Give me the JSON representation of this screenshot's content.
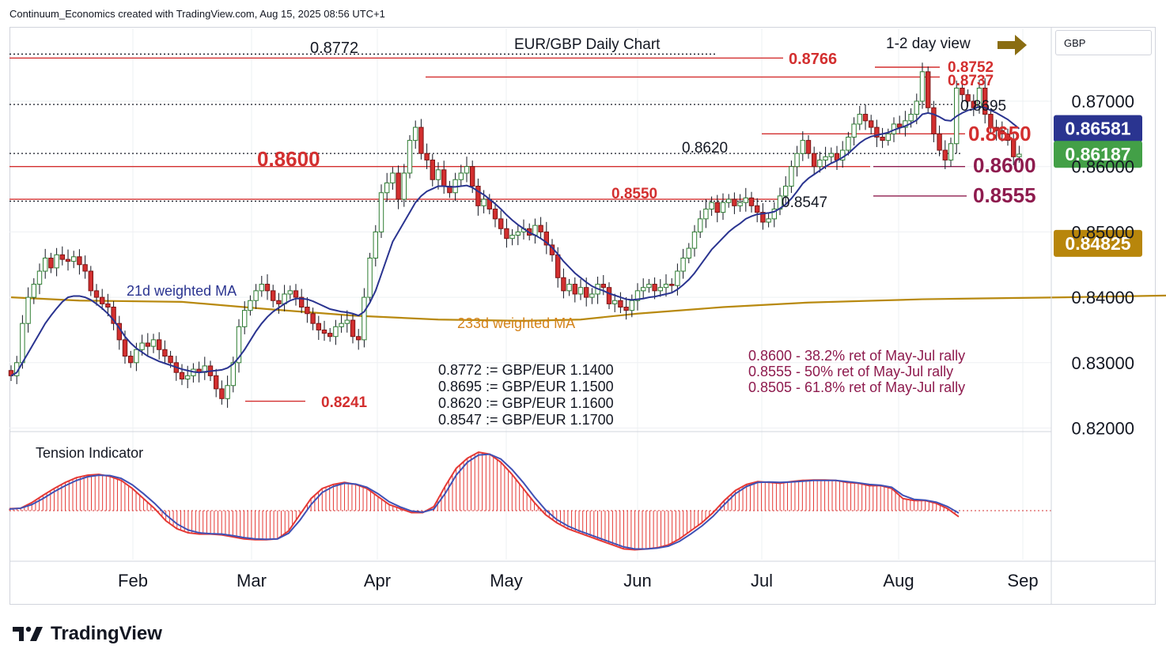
{
  "header": {
    "credit": "Continuum_Economics created with TradingView.com, Aug 15, 2025 08:56 UTC+1"
  },
  "symbol_box": "GBP",
  "logo": {
    "text": "TradingView"
  },
  "chart_data": {
    "type": "candlestick",
    "title": "EUR/GBP Daily Chart",
    "subtitle": "1-2 day view",
    "outlook_arrow": "right",
    "x_ticks": [
      "Feb",
      "Mar",
      "Apr",
      "May",
      "Jun",
      "Jul",
      "Aug",
      "Sep"
    ],
    "y_ticks": [
      "0.87000",
      "0.86000",
      "0.85000",
      "0.84000",
      "0.83000",
      "0.82000"
    ],
    "price_tags": [
      {
        "label": "0.86581",
        "value": 0.86581,
        "color": "#2a3490",
        "series": "21d weighted MA"
      },
      {
        "label": "0.86187",
        "value": 0.86187,
        "color": "#43a047",
        "series": "last close"
      },
      {
        "label": "0.84825",
        "value": 0.84825,
        "color": "#b8860b",
        "series": "233d weighted MA"
      }
    ],
    "levels": [
      {
        "label": "0.8772",
        "value": 0.8772,
        "style": "dotted",
        "color": "#131722"
      },
      {
        "label": "0.8766",
        "value": 0.8766,
        "style": "solid",
        "color": "#d32f2f"
      },
      {
        "label": "0.8752",
        "value": 0.8752,
        "style": "solid",
        "color": "#d32f2f"
      },
      {
        "label": "0.8737",
        "value": 0.8737,
        "style": "solid",
        "color": "#d32f2f"
      },
      {
        "label": "0.8695",
        "value": 0.8695,
        "style": "dotted",
        "color": "#131722"
      },
      {
        "label": "0.8650",
        "value": 0.865,
        "style": "solid",
        "color": "#d32f2f"
      },
      {
        "label": "0.8620",
        "value": 0.862,
        "style": "dotted",
        "color": "#131722"
      },
      {
        "label": "0.8600",
        "value": 0.86,
        "style": "solid",
        "color": "#d32f2f"
      },
      {
        "label": "0.8600",
        "value": 0.86,
        "style": "solid",
        "color": "#8e1b4e"
      },
      {
        "label": "0.8555",
        "value": 0.8555,
        "style": "solid",
        "color": "#8e1b4e"
      },
      {
        "label": "0.8550",
        "value": 0.855,
        "style": "solid",
        "color": "#d32f2f"
      },
      {
        "label": "0.8547",
        "value": 0.8547,
        "style": "dotted",
        "color": "#131722"
      },
      {
        "label": "0.8241",
        "value": 0.8241,
        "style": "solid",
        "color": "#d32f2f"
      }
    ],
    "series_labels": [
      {
        "name": "21d weighted MA",
        "color": "#2a3490"
      },
      {
        "name": "233d weighted MA",
        "color": "#d4831a"
      }
    ],
    "notes_conversion": [
      "0.8772 := GBP/EUR 1.1400",
      "0.8695 := GBP/EUR 1.1500",
      "0.8620 := GBP/EUR 1.1600",
      "0.8547 := GBP/EUR 1.1700"
    ],
    "notes_retracement": [
      "0.8600 - 38.2% ret of May-Jul rally",
      "0.8555 - 50% ret of May-Jul rally",
      "0.8505 - 61.8% ret of May-Jul rally"
    ],
    "indicator": {
      "name": "Tension Indicator"
    },
    "close_series": [
      0.828,
      0.83,
      0.836,
      0.84,
      0.842,
      0.844,
      0.846,
      0.8445,
      0.8465,
      0.8458,
      0.8455,
      0.8462,
      0.845,
      0.844,
      0.841,
      0.84,
      0.839,
      0.8385,
      0.836,
      0.8335,
      0.831,
      0.83,
      0.832,
      0.833,
      0.8325,
      0.8335,
      0.832,
      0.831,
      0.83,
      0.8285,
      0.8275,
      0.828,
      0.829,
      0.8285,
      0.8295,
      0.828,
      0.826,
      0.8245,
      0.8265,
      0.83,
      0.8355,
      0.838,
      0.8395,
      0.841,
      0.842,
      0.841,
      0.8395,
      0.839,
      0.8405,
      0.841,
      0.84,
      0.8385,
      0.8375,
      0.836,
      0.835,
      0.8345,
      0.834,
      0.8355,
      0.836,
      0.8365,
      0.834,
      0.8335,
      0.84,
      0.846,
      0.85,
      0.856,
      0.8575,
      0.859,
      0.855,
      0.859,
      0.864,
      0.866,
      0.862,
      0.861,
      0.858,
      0.8595,
      0.857,
      0.856,
      0.858,
      0.859,
      0.86,
      0.857,
      0.854,
      0.855,
      0.8535,
      0.852,
      0.8505,
      0.849,
      0.8495,
      0.85,
      0.8505,
      0.8495,
      0.851,
      0.85,
      0.848,
      0.8465,
      0.843,
      0.841,
      0.842,
      0.8405,
      0.8415,
      0.84,
      0.8405,
      0.842,
      0.8415,
      0.839,
      0.8395,
      0.8385,
      0.838,
      0.8395,
      0.841,
      0.8415,
      0.842,
      0.841,
      0.8415,
      0.842,
      0.8418,
      0.844,
      0.846,
      0.8475,
      0.85,
      0.852,
      0.8535,
      0.8545,
      0.853,
      0.8545,
      0.855,
      0.854,
      0.8545,
      0.8552,
      0.854,
      0.853,
      0.8515,
      0.852,
      0.8535,
      0.8555,
      0.857,
      0.86,
      0.862,
      0.864,
      0.862,
      0.86,
      0.861,
      0.8615,
      0.862,
      0.861,
      0.8625,
      0.8645,
      0.8665,
      0.868,
      0.867,
      0.866,
      0.8645,
      0.864,
      0.865,
      0.8665,
      0.866,
      0.867,
      0.868,
      0.87,
      0.8745,
      0.869,
      0.865,
      0.8625,
      0.861,
      0.8635,
      0.872,
      0.871,
      0.87,
      0.869,
      0.872,
      0.868,
      0.866,
      0.8655,
      0.865,
      0.864,
      0.8615,
      0.8619
    ],
    "wma21_series": [
      0.828,
      0.8285,
      0.83,
      0.8315,
      0.833,
      0.8345,
      0.836,
      0.8372,
      0.8383,
      0.8393,
      0.84,
      0.8402,
      0.8402,
      0.84,
      0.8396,
      0.839,
      0.8383,
      0.8375,
      0.8365,
      0.8353,
      0.834,
      0.833,
      0.8322,
      0.8316,
      0.831,
      0.8306,
      0.8302,
      0.8299,
      0.8296,
      0.8293,
      0.829,
      0.8288,
      0.8286,
      0.8285,
      0.8286,
      0.8287,
      0.8288,
      0.8289,
      0.8292,
      0.8298,
      0.8308,
      0.832,
      0.8334,
      0.8348,
      0.836,
      0.837,
      0.8378,
      0.8384,
      0.839,
      0.8395,
      0.8398,
      0.8398,
      0.8397,
      0.8394,
      0.839,
      0.8386,
      0.8382,
      0.838,
      0.8378,
      0.8377,
      0.8375,
      0.8372,
      0.8378,
      0.8392,
      0.841,
      0.8435,
      0.846,
      0.8485,
      0.85,
      0.8515,
      0.853,
      0.8545,
      0.8555,
      0.8562,
      0.8566,
      0.857,
      0.857,
      0.8569,
      0.8569,
      0.857,
      0.8571,
      0.8568,
      0.8562,
      0.8557,
      0.855,
      0.8543,
      0.8535,
      0.8526,
      0.8518,
      0.8511,
      0.8505,
      0.8499,
      0.8495,
      0.849,
      0.8484,
      0.8476,
      0.8466,
      0.8455,
      0.8446,
      0.8437,
      0.843,
      0.8423,
      0.8417,
      0.8413,
      0.841,
      0.8406,
      0.8403,
      0.84,
      0.8397,
      0.8396,
      0.8397,
      0.8398,
      0.84,
      0.8401,
      0.8403,
      0.8405,
      0.8407,
      0.8412,
      0.8419,
      0.8427,
      0.8437,
      0.8449,
      0.8461,
      0.8473,
      0.8482,
      0.8491,
      0.85,
      0.8507,
      0.8513,
      0.852,
      0.8524,
      0.8527,
      0.8528,
      0.8529,
      0.8531,
      0.8536,
      0.8542,
      0.8551,
      0.8562,
      0.8574,
      0.8582,
      0.8588,
      0.8594,
      0.86,
      0.8605,
      0.8609,
      0.8614,
      0.862,
      0.8628,
      0.8636,
      0.8642,
      0.8646,
      0.8648,
      0.865,
      0.8652,
      0.8656,
      0.8659,
      0.8662,
      0.8666,
      0.8671,
      0.868,
      0.8682,
      0.868,
      0.8676,
      0.8671,
      0.867,
      0.8677,
      0.8682,
      0.8686,
      0.8688,
      0.8692,
      0.869,
      0.8686,
      0.8682,
      0.8677,
      0.8672,
      0.8665,
      0.8658
    ],
    "wma233_series": [
      [
        0,
        0.84
      ],
      [
        12,
        0.8395
      ],
      [
        30,
        0.8393
      ],
      [
        45,
        0.8382
      ],
      [
        60,
        0.8372
      ],
      [
        75,
        0.8366
      ],
      [
        90,
        0.8364
      ],
      [
        100,
        0.8366
      ],
      [
        110,
        0.8375
      ],
      [
        125,
        0.8385
      ],
      [
        140,
        0.8392
      ],
      [
        160,
        0.8397
      ],
      [
        185,
        0.84
      ],
      [
        205,
        0.8403
      ],
      [
        225,
        0.841
      ],
      [
        245,
        0.8425
      ],
      [
        270,
        0.8442
      ],
      [
        295,
        0.846
      ],
      [
        320,
        0.848
      ],
      [
        341,
        0.8483
      ]
    ],
    "tension_series": [
      0.05,
      0.06,
      0.2,
      0.38,
      0.55,
      0.7,
      0.82,
      0.88,
      0.9,
      0.85,
      0.75,
      0.55,
      0.3,
      0.05,
      -0.25,
      -0.45,
      -0.55,
      -0.58,
      -0.58,
      -0.6,
      -0.65,
      -0.7,
      -0.72,
      -0.72,
      -0.7,
      -0.5,
      -0.1,
      0.3,
      0.55,
      0.65,
      0.7,
      0.65,
      0.55,
      0.35,
      0.15,
      0.05,
      -0.05,
      -0.05,
      0.1,
      0.6,
      1.05,
      1.3,
      1.45,
      1.4,
      1.2,
      0.9,
      0.55,
      0.2,
      -0.1,
      -0.3,
      -0.45,
      -0.55,
      -0.65,
      -0.75,
      -0.85,
      -0.95,
      -0.97,
      -0.95,
      -0.92,
      -0.85,
      -0.7,
      -0.5,
      -0.3,
      -0.05,
      0.25,
      0.5,
      0.65,
      0.72,
      0.7,
      0.68,
      0.72,
      0.75,
      0.76,
      0.76,
      0.75,
      0.7,
      0.68,
      0.62,
      0.62,
      0.55,
      0.3,
      0.25,
      0.25,
      0.18,
      0.05,
      -0.15
    ],
    "tension_signal_series": [
      0.04,
      0.06,
      0.15,
      0.3,
      0.47,
      0.62,
      0.75,
      0.84,
      0.88,
      0.87,
      0.8,
      0.64,
      0.42,
      0.18,
      -0.1,
      -0.33,
      -0.48,
      -0.55,
      -0.57,
      -0.58,
      -0.62,
      -0.67,
      -0.7,
      -0.71,
      -0.7,
      -0.56,
      -0.24,
      0.15,
      0.45,
      0.6,
      0.68,
      0.66,
      0.58,
      0.42,
      0.22,
      0.09,
      -0.01,
      -0.04,
      0.04,
      0.42,
      0.88,
      1.2,
      1.38,
      1.4,
      1.28,
      1.02,
      0.7,
      0.34,
      0.02,
      -0.22,
      -0.38,
      -0.5,
      -0.6,
      -0.7,
      -0.8,
      -0.9,
      -0.95,
      -0.95,
      -0.93,
      -0.88,
      -0.76,
      -0.58,
      -0.38,
      -0.14,
      0.15,
      0.42,
      0.6,
      0.7,
      0.71,
      0.7,
      0.71,
      0.73,
      0.75,
      0.75,
      0.75,
      0.72,
      0.69,
      0.65,
      0.63,
      0.58,
      0.38,
      0.28,
      0.26,
      0.21,
      0.1,
      -0.06
    ]
  }
}
